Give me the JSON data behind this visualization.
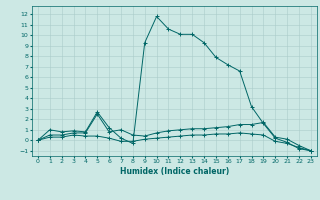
{
  "title": "",
  "xlabel": "Humidex (Indice chaleur)",
  "xlim": [
    -0.5,
    23.5
  ],
  "ylim": [
    -1.5,
    12.8
  ],
  "xticks": [
    0,
    1,
    2,
    3,
    4,
    5,
    6,
    7,
    8,
    9,
    10,
    11,
    12,
    13,
    14,
    15,
    16,
    17,
    18,
    19,
    20,
    21,
    22,
    23
  ],
  "yticks": [
    -1,
    0,
    1,
    2,
    3,
    4,
    5,
    6,
    7,
    8,
    9,
    10,
    11,
    12
  ],
  "background_color": "#cce8e4",
  "grid_color": "#aaccca",
  "line_color": "#006666",
  "lines": [
    {
      "x": [
        0,
        1,
        2,
        3,
        4,
        5,
        6,
        7,
        8,
        9,
        10,
        11,
        12,
        13,
        14,
        15,
        16,
        17,
        18,
        19,
        20,
        21,
        22,
        23
      ],
      "y": [
        0,
        1,
        0.8,
        0.9,
        0.8,
        2.7,
        1.2,
        0.2,
        -0.3,
        9.3,
        11.8,
        10.6,
        10.1,
        10.1,
        9.3,
        7.9,
        7.2,
        6.6,
        3.2,
        1.6,
        0.2,
        -0.2,
        -0.8,
        -1.0
      ]
    },
    {
      "x": [
        0,
        1,
        2,
        3,
        4,
        5,
        6,
        7,
        8,
        9,
        10,
        11,
        12,
        13,
        14,
        15,
        16,
        17,
        18,
        19,
        20,
        21,
        22,
        23
      ],
      "y": [
        0,
        0.5,
        0.5,
        0.7,
        0.7,
        2.5,
        0.8,
        1.0,
        0.5,
        0.4,
        0.7,
        0.9,
        1.0,
        1.1,
        1.1,
        1.2,
        1.3,
        1.5,
        1.5,
        1.7,
        0.3,
        0.1,
        -0.5,
        -1.0
      ]
    },
    {
      "x": [
        0,
        1,
        2,
        3,
        4,
        5,
        6,
        7,
        8,
        9,
        10,
        11,
        12,
        13,
        14,
        15,
        16,
        17,
        18,
        19,
        20,
        21,
        22,
        23
      ],
      "y": [
        0,
        0.3,
        0.3,
        0.5,
        0.4,
        0.4,
        0.2,
        -0.1,
        -0.1,
        0.1,
        0.2,
        0.3,
        0.4,
        0.5,
        0.5,
        0.6,
        0.6,
        0.7,
        0.6,
        0.5,
        -0.1,
        -0.3,
        -0.7,
        -1.0
      ]
    }
  ]
}
